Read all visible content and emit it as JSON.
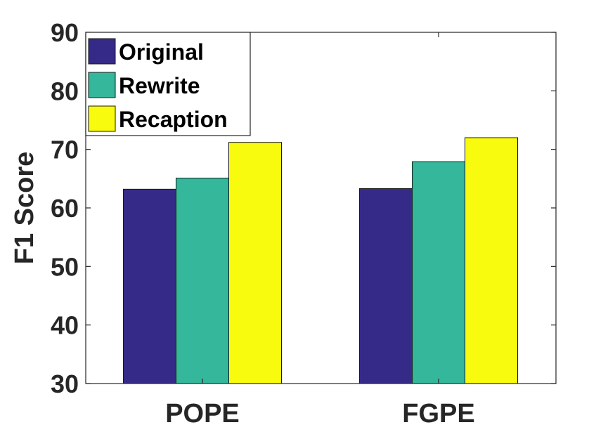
{
  "chart_data": {
    "type": "bar",
    "categories": [
      "POPE",
      "FGPE"
    ],
    "series": [
      {
        "name": "Original",
        "values": [
          63.2,
          63.3
        ],
        "color": "#352a87"
      },
      {
        "name": "Rewrite",
        "values": [
          65.1,
          67.9
        ],
        "color": "#35b79b"
      },
      {
        "name": "Recaption",
        "values": [
          71.2,
          72.0
        ],
        "color": "#f9fb0e"
      }
    ],
    "title": "",
    "xlabel": "",
    "ylabel": "F1 Score",
    "ylim": [
      30,
      90
    ],
    "yticks": [
      "30",
      "40",
      "50",
      "60",
      "70",
      "80",
      "90"
    ],
    "grid": false,
    "legend_position": "top-left"
  }
}
